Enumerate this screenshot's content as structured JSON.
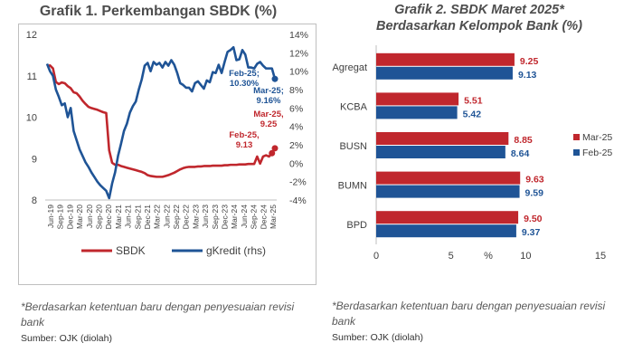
{
  "left_panel": {
    "title": "Grafik 1. Perkembangan SBDK (%)",
    "note": "*Berdasarkan ketentuan baru dengan penyesuaian revisi bank",
    "source": "Sumber: OJK (diolah)"
  },
  "right_panel": {
    "title_line1": "Grafik 2. SBDK Maret 2025*",
    "title_line2": "Berdasarkan Kelompok Bank (%)",
    "note": "*Berdasarkan ketentuan baru dengan penyesuaian revisi bank",
    "source": "Sumber: OJK (diolah)"
  },
  "chart_data": [
    {
      "type": "line",
      "title": "Grafik 1. Perkembangan SBDK (%)",
      "x_ticks": [
        "Jun-19",
        "Sep-19",
        "Dec-19",
        "Mar-20",
        "Jun-20",
        "Sep-20",
        "Dec-20",
        "Mar-21",
        "Jun-21",
        "Sep-21",
        "Dec-21",
        "Mar-22",
        "Jun-22",
        "Sep-22",
        "Dec-22",
        "Mar-23",
        "Jun-23",
        "Sep-23",
        "Dec-23",
        "Mar-24",
        "Jun-24",
        "Sep-24",
        "Dec-24",
        "Mar-25"
      ],
      "y_left": {
        "ticks": [
          8,
          9,
          10,
          11,
          12
        ],
        "ylim": [
          8,
          12
        ]
      },
      "y_right": {
        "ticks": [
          "-4%",
          "-2%",
          "0%",
          "2%",
          "4%",
          "6%",
          "8%",
          "10%",
          "12%",
          "14%"
        ],
        "ylim": [
          -4,
          14
        ]
      },
      "series": [
        {
          "name": "SBDK",
          "axis": "left",
          "color": "#c0272d",
          "values": [
            11.23,
            11.25,
            11.18,
            10.85,
            10.8,
            10.84,
            10.82,
            10.75,
            10.7,
            10.6,
            10.58,
            10.5,
            10.4,
            10.32,
            10.25,
            10.22,
            10.2,
            10.18,
            10.15,
            10.12,
            10.1,
            9.2,
            8.9,
            8.85,
            8.85,
            8.82,
            8.8,
            8.78,
            8.76,
            8.74,
            8.72,
            8.7,
            8.68,
            8.65,
            8.6,
            8.58,
            8.57,
            8.56,
            8.56,
            8.56,
            8.58,
            8.6,
            8.63,
            8.66,
            8.7,
            8.74,
            8.77,
            8.79,
            8.8,
            8.8,
            8.8,
            8.81,
            8.81,
            8.82,
            8.82,
            8.82,
            8.83,
            8.83,
            8.83,
            8.83,
            8.84,
            8.84,
            8.85,
            8.85,
            8.85,
            8.86,
            8.86,
            8.86,
            8.87,
            8.87,
            8.87,
            9.05,
            8.88,
            9.05,
            9.08,
            9.05,
            9.13,
            9.25
          ]
        },
        {
          "name": "gKredit (rhs)",
          "axis": "right",
          "color": "#1f5496",
          "values": [
            10.8,
            10.0,
            9.5,
            8.0,
            7.2,
            6.3,
            6.5,
            5.0,
            6.0,
            3.5,
            2.5,
            1.5,
            0.8,
            0.1,
            -0.4,
            -1.0,
            -1.5,
            -2.0,
            -2.4,
            -2.7,
            -3.0,
            -3.8,
            -2.2,
            -1.0,
            0.8,
            2.1,
            3.5,
            4.3,
            5.5,
            6.2,
            6.7,
            8.0,
            9.1,
            10.6,
            10.9,
            10.0,
            11.0,
            10.7,
            10.9,
            10.4,
            11.0,
            10.6,
            11.2,
            10.7,
            9.8,
            8.7,
            8.5,
            8.2,
            8.2,
            7.8,
            8.7,
            8.9,
            8.5,
            8.1,
            9.0,
            8.8,
            9.9,
            9.8,
            10.7,
            9.8,
            11.0,
            12.1,
            12.3,
            12.6,
            11.2,
            11.3,
            12.3,
            11.8,
            10.4,
            10.4,
            10.3,
            10.8,
            11.0,
            10.6,
            10.3,
            10.3,
            10.3,
            9.16
          ]
        }
      ],
      "annotations": [
        {
          "text1": "Feb-25;",
          "text2": "10.30%",
          "color": "#1f5496"
        },
        {
          "text1": "Mar-25;",
          "text2": "9.16%",
          "color": "#1f5496"
        },
        {
          "text1": "Mar-25,",
          "text2": "9.25",
          "color": "#c0272d"
        },
        {
          "text1": "Feb-25,",
          "text2": "9.13",
          "color": "#c0272d"
        }
      ],
      "legend": [
        {
          "name": "SBDK",
          "color": "#c0272d"
        },
        {
          "name": "gKredit (rhs)",
          "color": "#1f5496"
        }
      ],
      "legend_position": "bottom"
    },
    {
      "type": "bar",
      "orientation": "horizontal",
      "title": "Grafik 2. SBDK Maret 2025* Berdasarkan Kelompok Bank (%)",
      "categories": [
        "Agregat",
        "KCBA",
        "BUSN",
        "BUMN",
        "BPD"
      ],
      "series": [
        {
          "name": "Mar-25",
          "color": "#c0272d",
          "values": [
            9.25,
            5.51,
            8.85,
            9.63,
            9.5
          ]
        },
        {
          "name": "Feb-25",
          "color": "#1f5496",
          "values": [
            9.13,
            5.42,
            8.64,
            9.59,
            9.37
          ]
        }
      ],
      "x_ticks": [
        0,
        5,
        10,
        15
      ],
      "x_unit": "%",
      "xlim": [
        0,
        15
      ],
      "legend_position": "right"
    }
  ]
}
